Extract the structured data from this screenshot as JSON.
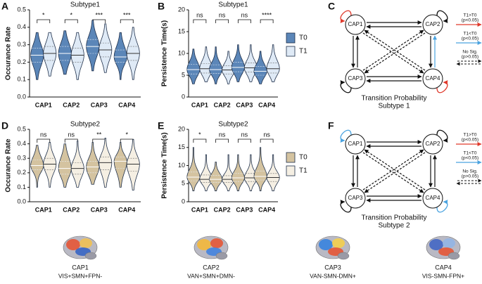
{
  "chart_data": [
    {
      "type": "violin",
      "panel": "A",
      "title": "Subtype1",
      "ylabel": "Occurance Rate",
      "categories": [
        "CAP1",
        "CAP2",
        "CAP3",
        "CAP4"
      ],
      "ylim": [
        0,
        0.5
      ],
      "yticks": [
        {
          "value": 0,
          "label": "0.0"
        },
        0.1,
        0.2,
        0.3,
        0.4,
        0.5
      ],
      "annotations": [
        "*",
        "*",
        "***",
        "***"
      ],
      "series": [
        {
          "color": "#5b86b8",
          "median": [
            0.24,
            0.25,
            0.29,
            0.23
          ],
          "q1": [
            0.2,
            0.21,
            0.25,
            0.2
          ],
          "q3": [
            0.28,
            0.29,
            0.33,
            0.27
          ],
          "min": [
            0.1,
            0.13,
            0.15,
            0.1
          ],
          "max": [
            0.37,
            0.38,
            0.44,
            0.37
          ]
        },
        {
          "color": "#dfeaf6",
          "median": [
            0.25,
            0.24,
            0.27,
            0.25
          ],
          "q1": [
            0.21,
            0.2,
            0.23,
            0.21
          ],
          "q3": [
            0.29,
            0.28,
            0.31,
            0.29
          ],
          "min": [
            0.12,
            0.1,
            0.14,
            0.1
          ],
          "max": [
            0.37,
            0.37,
            0.42,
            0.4
          ]
        }
      ]
    },
    {
      "type": "violin",
      "panel": "B",
      "title": "Subtype1",
      "ylabel": "Persistence Time(s)",
      "categories": [
        "CAP1",
        "CAP2",
        "CAP3",
        "CAP4"
      ],
      "ylim": [
        0,
        20
      ],
      "yticks": [
        0,
        5,
        10,
        15,
        20
      ],
      "legend": "right",
      "annotations": [
        "ns",
        "ns",
        "ns",
        "****"
      ],
      "series": [
        {
          "name": "T0",
          "color": "#5b86b8",
          "median": [
            6.3,
            6.3,
            6.8,
            5.9
          ],
          "q1": [
            5.3,
            5.4,
            5.8,
            5
          ],
          "q3": [
            7.5,
            7.4,
            8,
            7
          ],
          "min": [
            3,
            3,
            3.5,
            3
          ],
          "max": [
            11,
            11.5,
            12,
            10.5
          ]
        },
        {
          "name": "T1",
          "color": "#dfeaf6",
          "median": [
            6.5,
            6.2,
            6.7,
            6.5
          ],
          "q1": [
            5.5,
            5.3,
            5.7,
            5.5
          ],
          "q3": [
            7.7,
            7.2,
            7.8,
            7.8
          ],
          "min": [
            3.5,
            3,
            3.5,
            3.5
          ],
          "max": [
            11.5,
            10.5,
            12,
            12
          ]
        }
      ]
    },
    {
      "type": "violin",
      "panel": "D",
      "title": "Subtype2",
      "ylabel": "Occurance Rate",
      "categories": [
        "CAP1",
        "CAP2",
        "CAP3",
        "CAP4"
      ],
      "ylim": [
        0,
        0.5
      ],
      "yticks": [
        {
          "value": 0,
          "label": "0.0"
        },
        0.1,
        0.2,
        0.3,
        0.4,
        0.5
      ],
      "annotations": [
        "ns",
        "ns",
        "**",
        "*"
      ],
      "series": [
        {
          "color": "#d4c3a0",
          "median": [
            0.25,
            0.23,
            0.24,
            0.28
          ],
          "q1": [
            0.22,
            0.19,
            0.2,
            0.23
          ],
          "q3": [
            0.29,
            0.28,
            0.28,
            0.31
          ],
          "min": [
            0.1,
            0.1,
            0.12,
            0.1
          ],
          "max": [
            0.39,
            0.4,
            0.41,
            0.41
          ]
        },
        {
          "color": "#f5efe3",
          "median": [
            0.26,
            0.23,
            0.27,
            0.26
          ],
          "q1": [
            0.22,
            0.19,
            0.22,
            0.21
          ],
          "q3": [
            0.3,
            0.27,
            0.31,
            0.3
          ],
          "min": [
            0.1,
            0.1,
            0.1,
            0.08
          ],
          "max": [
            0.41,
            0.42,
            0.44,
            0.43
          ]
        }
      ]
    },
    {
      "type": "violin",
      "panel": "E",
      "title": "Subtype2",
      "ylabel": "Persistence Time(s)",
      "categories": [
        "CAP1",
        "CAP2",
        "CAP3",
        "CAP4"
      ],
      "ylim": [
        0,
        20
      ],
      "yticks": [
        0,
        5,
        10,
        15,
        20
      ],
      "legend": "right",
      "annotations": [
        "*",
        "ns",
        "ns",
        "ns"
      ],
      "series": [
        {
          "name": "T0",
          "color": "#d4c3a0",
          "median": [
            6.8,
            6.2,
            6.6,
            7
          ],
          "q1": [
            5.8,
            5.3,
            5.6,
            6
          ],
          "q3": [
            8.2,
            7.3,
            7.8,
            8.5
          ],
          "min": [
            3,
            3,
            3,
            3
          ],
          "max": [
            15,
            11,
            13,
            15
          ]
        },
        {
          "name": "T1",
          "color": "#f5efe3",
          "median": [
            6.2,
            6.2,
            6.6,
            6.7
          ],
          "q1": [
            5.3,
            5.3,
            5.6,
            5.6
          ],
          "q3": [
            7.4,
            7.2,
            7.8,
            7.8
          ],
          "min": [
            3,
            3,
            3,
            3
          ],
          "max": [
            13,
            13,
            13,
            13
          ]
        }
      ]
    }
  ],
  "diagrams": [
    {
      "panel": "C",
      "nodes": [
        "CAP1",
        "CAP2",
        "CAP3",
        "CAP4"
      ],
      "legend": [
        {
          "label": "T1>T0",
          "note": "(p<0.05)"
        },
        {
          "label": "T1<T0",
          "note": "(p<0.05)"
        },
        {
          "label": "No Sig.",
          "note": "(p>0.05)"
        }
      ],
      "caption": [
        "Transition Probability",
        "Subtype 1"
      ]
    },
    {
      "panel": "F",
      "nodes": [
        "CAP1",
        "CAP2",
        "CAP3",
        "CAP4"
      ],
      "legend": [
        {
          "label": "T1>T0",
          "note": "(p<0.05)"
        },
        {
          "label": "T1<T0",
          "note": "(p<0.05)"
        },
        {
          "label": "No Sig.",
          "note": "(p>0.05)"
        }
      ],
      "caption": [
        "Transition Probability",
        "Subtype 2"
      ]
    }
  ],
  "caps": [
    {
      "name": "CAP1",
      "networks": "VIS+SMN+FPN-"
    },
    {
      "name": "CAP2",
      "networks": "VAN+SMN+DMN-"
    },
    {
      "name": "CAP3",
      "networks": "VAN-SMN-DMN+"
    },
    {
      "name": "CAP4",
      "networks": "VIS-SMN-FPN+"
    }
  ]
}
